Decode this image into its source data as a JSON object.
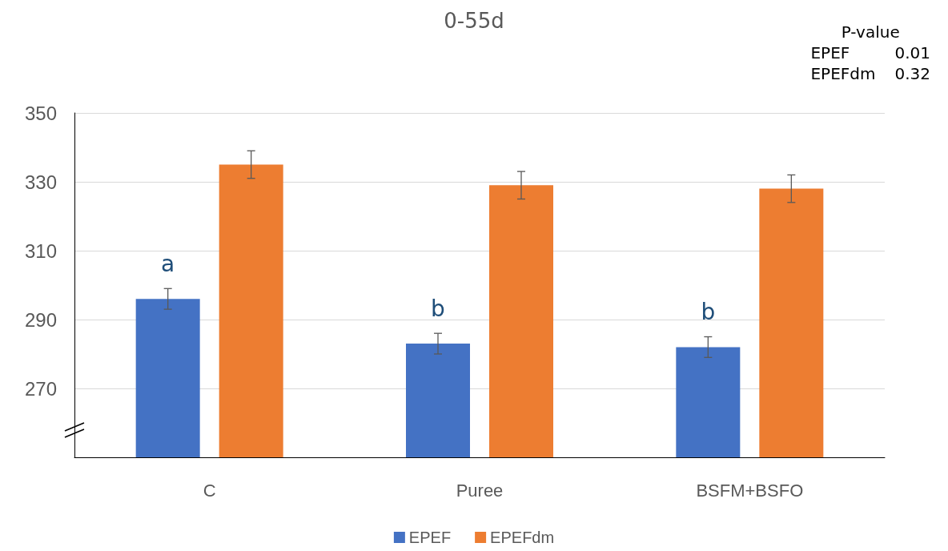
{
  "chart_data": {
    "type": "bar",
    "title": "0-55d",
    "categories": [
      "C",
      "Puree",
      "BSFM+BSFO"
    ],
    "series": [
      {
        "name": "EPEF",
        "color": "#4472c4",
        "values": [
          296,
          283,
          282
        ],
        "errors": [
          3,
          3,
          3
        ],
        "value_labels": [
          "a",
          "b",
          "b"
        ]
      },
      {
        "name": "EPEFdm",
        "color": "#ed7d31",
        "values": [
          335,
          329,
          328
        ],
        "errors": [
          4,
          4,
          4
        ]
      }
    ],
    "ylim": [
      250,
      350
    ],
    "yticks": [
      270,
      290,
      310,
      330,
      350
    ],
    "grid": "y",
    "legend": "bottom",
    "annotations": [
      "P-value",
      "EPEF",
      "0.01",
      "EPEFdm",
      "0.32"
    ]
  }
}
